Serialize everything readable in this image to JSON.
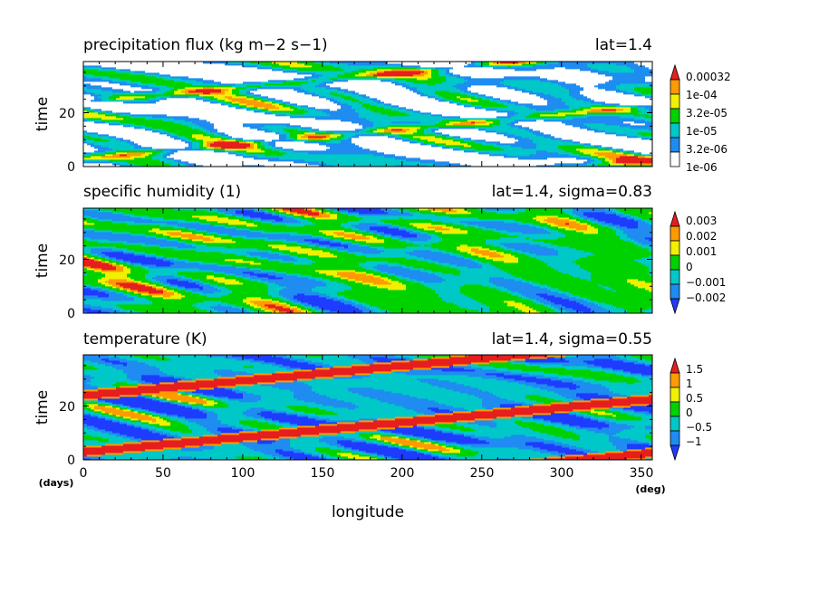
{
  "chart_data": [
    {
      "type": "heatmap",
      "title": "precipitation flux (kg m−2 s−1)",
      "subtitle": "lat=1.4",
      "ylabel": "time",
      "ylim": [
        0,
        39
      ],
      "yticks": [
        "0",
        "20"
      ],
      "xlim": [
        0,
        357
      ],
      "colorbar": [
        "0.00032",
        "1e-04",
        "3.2e-05",
        "1e-05",
        "3.2e-06",
        "1e-06"
      ],
      "palette": [
        "#ffffff",
        "#1e8cf0",
        "#00c8c8",
        "#00d200",
        "#f0f000",
        "#ff9b00",
        "#e61e1e"
      ]
    },
    {
      "type": "heatmap",
      "title": "specific humidity (1)",
      "subtitle": "lat=1.4, sigma=0.83",
      "ylabel": "time",
      "ylim": [
        0,
        39
      ],
      "yticks": [
        "0",
        "20"
      ],
      "xlim": [
        0,
        357
      ],
      "colorbar": [
        "0.003",
        "0.002",
        "0.001",
        "0",
        "−0.001",
        "−0.002"
      ],
      "palette": [
        "#1e3cff",
        "#1e8cf0",
        "#00c8c8",
        "#00d200",
        "#f0f000",
        "#ff9b00",
        "#e61e1e"
      ]
    },
    {
      "type": "heatmap",
      "title": "temperature (K)",
      "subtitle": "lat=1.4, sigma=0.55",
      "ylabel": "time",
      "ylim": [
        0,
        39
      ],
      "yticks": [
        "0",
        "20"
      ],
      "xlim": [
        0,
        357
      ],
      "colorbar": [
        "1.5",
        "1",
        "0.5",
        "0",
        "−0.5",
        "−1"
      ],
      "palette": [
        "#1e3cff",
        "#1e8cf0",
        "#00c8c8",
        "#00d200",
        "#f0f000",
        "#ff9b00",
        "#e61e1e"
      ]
    }
  ],
  "xaxis": {
    "label": "longitude",
    "ticks": [
      "0",
      "50",
      "100",
      "150",
      "200",
      "250",
      "300",
      "350"
    ],
    "unit_left": "(days)",
    "unit_right": "(deg)"
  }
}
